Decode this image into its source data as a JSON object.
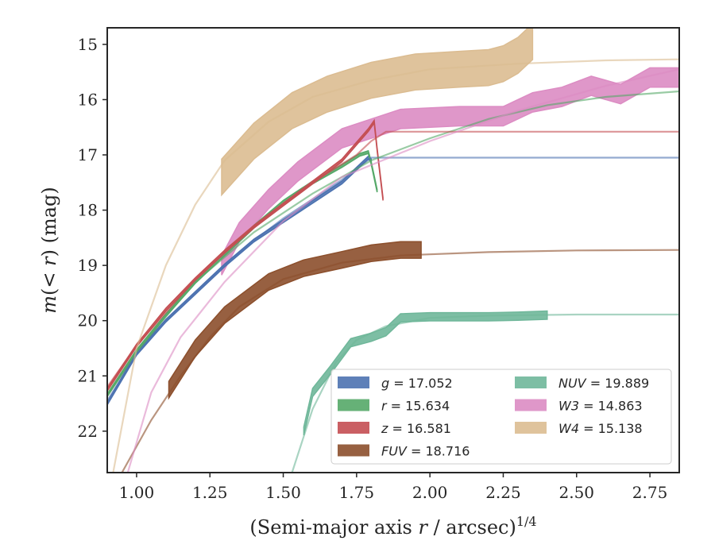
{
  "chart_data": {
    "type": "line",
    "title": "",
    "xlabel": "(Semi-major axis r / arcsec)^{1/4}",
    "ylabel": "m(<r) (mag)",
    "xlim": [
      0.9,
      2.85
    ],
    "ylim": [
      22.75,
      14.7
    ],
    "y_inverted": true,
    "grid": false,
    "xticks": [
      "1.00",
      "1.25",
      "1.50",
      "1.75",
      "2.00",
      "2.25",
      "2.50",
      "2.75"
    ],
    "yticks": [
      "15",
      "16",
      "17",
      "18",
      "19",
      "20",
      "21",
      "22"
    ],
    "legend_position": "lower-right",
    "legend": [
      {
        "label": "g = 17.052",
        "color": "#4c72b0",
        "column": 1
      },
      {
        "label": "r = 15.634",
        "color": "#55a868",
        "column": 1
      },
      {
        "label": "z = 16.581",
        "color": "#c44e52",
        "column": 1
      },
      {
        "label": "FUV = 18.716",
        "color": "#8c4f2c",
        "column": 1
      },
      {
        "label": "NUV = 19.889",
        "color": "#6fb79a",
        "column": 2
      },
      {
        "label": "W3 = 14.863",
        "color": "#dc8cc3",
        "column": 2
      },
      {
        "label": "W4 = 15.138",
        "color": "#dbbc91",
        "column": 2
      }
    ],
    "series": [
      {
        "name": "g",
        "color": "#4c72b0",
        "model_x": [
          0.9,
          1.0,
          1.1,
          1.2,
          1.3,
          1.4,
          1.5,
          1.6,
          1.7,
          1.8,
          2.0,
          2.5,
          2.85
        ],
        "model_y": [
          21.45,
          20.6,
          20.0,
          19.5,
          19.0,
          18.55,
          18.15,
          17.8,
          17.45,
          17.05,
          17.05,
          17.05,
          17.05
        ],
        "data_x": [
          0.9,
          1.0,
          1.1,
          1.2,
          1.3,
          1.4,
          1.5,
          1.6,
          1.7,
          1.76,
          1.79,
          1.8
        ],
        "data_y": [
          21.5,
          20.6,
          20.0,
          19.5,
          19.0,
          18.55,
          18.2,
          17.85,
          17.5,
          17.2,
          17.05,
          17.1
        ],
        "band_width": 0.05
      },
      {
        "name": "r",
        "color": "#55a868",
        "model_x": [
          0.9,
          1.0,
          1.2,
          1.4,
          1.6,
          1.8,
          2.0,
          2.2,
          2.4,
          2.6,
          2.85
        ],
        "model_y": [
          21.35,
          20.55,
          19.3,
          18.4,
          17.7,
          17.1,
          16.7,
          16.35,
          16.1,
          15.95,
          15.85
        ],
        "data_x": [
          0.9,
          1.0,
          1.1,
          1.2,
          1.3,
          1.4,
          1.5,
          1.6,
          1.7,
          1.76,
          1.79,
          1.8,
          1.82
        ],
        "data_y": [
          21.35,
          20.55,
          19.9,
          19.3,
          18.8,
          18.3,
          17.85,
          17.5,
          17.2,
          17.0,
          16.95,
          17.15,
          17.65
        ],
        "band_width": 0.05
      },
      {
        "name": "z",
        "color": "#c44e52",
        "model_x": [
          0.9,
          1.0,
          1.2,
          1.4,
          1.6,
          1.75,
          1.8,
          1.85,
          2.0,
          2.5,
          2.85
        ],
        "model_y": [
          21.2,
          20.45,
          19.25,
          18.3,
          17.5,
          17.0,
          16.75,
          16.58,
          16.58,
          16.58,
          16.58
        ],
        "data_x": [
          0.9,
          1.0,
          1.1,
          1.2,
          1.3,
          1.4,
          1.5,
          1.6,
          1.7,
          1.79,
          1.81,
          1.82,
          1.84
        ],
        "data_y": [
          21.25,
          20.45,
          19.8,
          19.25,
          18.75,
          18.3,
          17.9,
          17.5,
          17.1,
          16.55,
          16.4,
          16.9,
          17.8
        ],
        "band_width": 0.05
      },
      {
        "name": "FUV",
        "color": "#8c4f2c",
        "model_x": [
          0.95,
          1.05,
          1.15,
          1.25,
          1.35,
          1.5,
          1.7,
          1.9,
          2.2,
          2.5,
          2.85
        ],
        "model_y": [
          22.75,
          21.8,
          21.0,
          20.3,
          19.75,
          19.25,
          18.95,
          18.82,
          18.76,
          18.73,
          18.72
        ],
        "data_x": [
          1.11,
          1.2,
          1.3,
          1.45,
          1.57,
          1.7,
          1.8,
          1.9,
          1.97
        ],
        "data_y": [
          21.25,
          20.5,
          19.9,
          19.3,
          19.05,
          18.9,
          18.78,
          18.72,
          18.72
        ],
        "band_width": 0.3
      },
      {
        "name": "NUV",
        "color": "#6fb79a",
        "model_x": [
          1.53,
          1.6,
          1.68,
          1.75,
          1.85,
          2.0,
          2.2,
          2.5,
          2.85
        ],
        "model_y": [
          22.75,
          21.6,
          20.75,
          20.35,
          20.1,
          19.95,
          19.91,
          19.89,
          19.89
        ],
        "data_x": [
          1.57,
          1.6,
          1.66,
          1.73,
          1.8,
          1.85,
          1.9,
          2.0,
          2.2,
          2.3,
          2.4
        ],
        "data_y": [
          22.0,
          21.3,
          20.9,
          20.4,
          20.3,
          20.2,
          19.95,
          19.93,
          19.93,
          19.92,
          19.9
        ],
        "band_width": 0.15
      },
      {
        "name": "W3",
        "color": "#dc8cc3",
        "model_x": [
          0.97,
          1.05,
          1.15,
          1.3,
          1.5,
          1.7,
          2.0,
          2.3,
          2.6,
          2.85
        ],
        "model_y": [
          22.75,
          21.3,
          20.3,
          19.3,
          18.2,
          17.4,
          16.75,
          16.2,
          15.75,
          15.45
        ],
        "data_x": [
          1.29,
          1.35,
          1.45,
          1.55,
          1.7,
          1.9,
          2.1,
          2.25,
          2.35,
          2.45,
          2.55,
          2.65,
          2.75,
          2.85
        ],
        "data_y": [
          19.0,
          18.4,
          17.8,
          17.3,
          16.7,
          16.35,
          16.3,
          16.3,
          16.05,
          15.95,
          15.75,
          15.9,
          15.6,
          15.6
        ],
        "band_width": 0.35
      },
      {
        "name": "W4",
        "color": "#dbbc91",
        "model_x": [
          0.92,
          1.0,
          1.1,
          1.2,
          1.3,
          1.45,
          1.6,
          1.8,
          2.0,
          2.3,
          2.6,
          2.85
        ],
        "model_y": [
          22.75,
          20.5,
          19.0,
          17.9,
          17.1,
          16.4,
          15.95,
          15.65,
          15.45,
          15.35,
          15.29,
          15.27
        ],
        "data_x": [
          1.29,
          1.4,
          1.53,
          1.65,
          1.8,
          1.95,
          2.1,
          2.2,
          2.25,
          2.3,
          2.35
        ],
        "data_y": [
          17.4,
          16.75,
          16.2,
          15.9,
          15.65,
          15.5,
          15.45,
          15.42,
          15.35,
          15.2,
          14.95
        ],
        "band_width": 0.65
      }
    ]
  }
}
